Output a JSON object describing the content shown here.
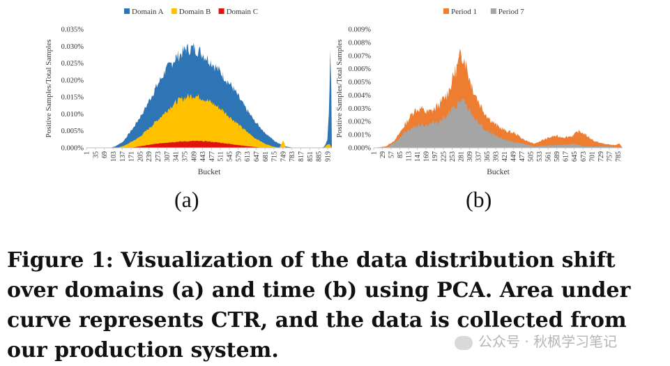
{
  "figure": {
    "label_a": "(a)",
    "label_b": "(b)",
    "caption": "Figure 1: Visualization of the data distribution shift over domains (a) and time (b) using PCA. Area under curve represents CTR, and the data is collected from our production system.",
    "watermark": "公众号 · 秋枫学习笔记"
  },
  "chart_data": [
    {
      "type": "area",
      "title": "",
      "xlabel": "Bucket",
      "ylabel": "Positive Samples/Total Samples",
      "ylim": [
        0,
        0.035
      ],
      "y_ticks": [
        "0.000%",
        "0.005%",
        "0.010%",
        "0.015%",
        "0.020%",
        "0.025%",
        "0.030%",
        "0.035%"
      ],
      "x_range": [
        1,
        935
      ],
      "x_ticks": [
        "1",
        "35",
        "69",
        "103",
        "137",
        "171",
        "205",
        "239",
        "273",
        "307",
        "341",
        "375",
        "409",
        "443",
        "477",
        "511",
        "545",
        "579",
        "613",
        "647",
        "681",
        "715",
        "749",
        "783",
        "817",
        "851",
        "885",
        "919"
      ],
      "legend": "top-center",
      "grid": false,
      "series": [
        {
          "name": "Domain A",
          "color": "#2E75B6",
          "points": [
            [
              1,
              0
            ],
            [
              90,
              0
            ],
            [
              110,
              0.0004
            ],
            [
              140,
              0.0018
            ],
            [
              180,
              0.006
            ],
            [
              220,
              0.011
            ],
            [
              260,
              0.017
            ],
            [
              300,
              0.0225
            ],
            [
              340,
              0.0265
            ],
            [
              380,
              0.029
            ],
            [
              409,
              0.0295
            ],
            [
              440,
              0.028
            ],
            [
              480,
              0.025
            ],
            [
              520,
              0.0215
            ],
            [
              560,
              0.0175
            ],
            [
              600,
              0.0125
            ],
            [
              640,
              0.008
            ],
            [
              680,
              0.0045
            ],
            [
              720,
              0.0018
            ],
            [
              760,
              0.0004
            ],
            [
              790,
              0
            ],
            [
              895,
              0
            ],
            [
              905,
              0.0003
            ],
            [
              912,
              0.0012
            ],
            [
              918,
              0.0025
            ],
            [
              923,
              0.009
            ],
            [
              926,
              0.016
            ],
            [
              929,
              0.03
            ],
            [
              933,
              0.018
            ],
            [
              935,
              0
            ]
          ]
        },
        {
          "name": "Domain B",
          "color": "#FFC000",
          "points": [
            [
              1,
              0
            ],
            [
              120,
              0
            ],
            [
              150,
              0.0008
            ],
            [
              200,
              0.003
            ],
            [
              250,
              0.0065
            ],
            [
              300,
              0.0105
            ],
            [
              340,
              0.0135
            ],
            [
              380,
              0.015
            ],
            [
              409,
              0.0155
            ],
            [
              440,
              0.0148
            ],
            [
              480,
              0.0132
            ],
            [
              520,
              0.011
            ],
            [
              560,
              0.0082
            ],
            [
              600,
              0.0055
            ],
            [
              640,
              0.003
            ],
            [
              680,
              0.0012
            ],
            [
              710,
              0.0004
            ],
            [
              735,
              0
            ],
            [
              750,
              0.0022
            ],
            [
              760,
              0
            ],
            [
              905,
              0
            ],
            [
              915,
              0.0008
            ],
            [
              925,
              0.0012
            ],
            [
              935,
              0
            ]
          ]
        },
        {
          "name": "Domain C",
          "color": "#E0120B",
          "points": [
            [
              1,
              0
            ],
            [
              170,
              0
            ],
            [
              200,
              0.0004
            ],
            [
              250,
              0.001
            ],
            [
              300,
              0.0015
            ],
            [
              350,
              0.0018
            ],
            [
              409,
              0.002
            ],
            [
              460,
              0.0019
            ],
            [
              510,
              0.0015
            ],
            [
              560,
              0.001
            ],
            [
              610,
              0.0005
            ],
            [
              660,
              0.0001
            ],
            [
              690,
              0
            ]
          ]
        }
      ]
    },
    {
      "type": "area",
      "title": "",
      "xlabel": "Bucket",
      "ylabel": "Positive Samples/Total Samples",
      "ylim": [
        0,
        0.009
      ],
      "y_ticks": [
        "0.000%",
        "0.001%",
        "0.002%",
        "0.003%",
        "0.004%",
        "0.005%",
        "0.006%",
        "0.007%",
        "0.008%",
        "0.009%"
      ],
      "x_range": [
        1,
        800
      ],
      "x_ticks": [
        "1",
        "29",
        "57",
        "85",
        "113",
        "141",
        "169",
        "197",
        "225",
        "253",
        "281",
        "309",
        "337",
        "365",
        "393",
        "421",
        "449",
        "477",
        "505",
        "533",
        "561",
        "589",
        "617",
        "645",
        "673",
        "701",
        "729",
        "757",
        "785"
      ],
      "legend": "top-center",
      "grid": false,
      "series": [
        {
          "name": "Period 1",
          "color": "#ED7D31",
          "points": [
            [
              1,
              0
            ],
            [
              40,
              0.0001
            ],
            [
              70,
              0.0006
            ],
            [
              100,
              0.0017
            ],
            [
              130,
              0.0028
            ],
            [
              150,
              0.003
            ],
            [
              170,
              0.0027
            ],
            [
              190,
              0.0028
            ],
            [
              215,
              0.0034
            ],
            [
              240,
              0.0042
            ],
            [
              260,
              0.0056
            ],
            [
              275,
              0.0066
            ],
            [
              283,
              0.0073
            ],
            [
              295,
              0.0065
            ],
            [
              315,
              0.0048
            ],
            [
              340,
              0.0034
            ],
            [
              365,
              0.0024
            ],
            [
              395,
              0.0017
            ],
            [
              425,
              0.0013
            ],
            [
              455,
              0.0011
            ],
            [
              485,
              0.0006
            ],
            [
              515,
              0.0003
            ],
            [
              545,
              0.0006
            ],
            [
              580,
              0.0009
            ],
            [
              610,
              0.0008
            ],
            [
              640,
              0.0009
            ],
            [
              660,
              0.0013
            ],
            [
              680,
              0.001
            ],
            [
              710,
              0.0005
            ],
            [
              740,
              0.0003
            ],
            [
              775,
              0.0002
            ],
            [
              790,
              0.0003
            ],
            [
              800,
              0
            ]
          ]
        },
        {
          "name": "Period 7",
          "color": "#A5A5A5",
          "points": [
            [
              1,
              0
            ],
            [
              40,
              0
            ],
            [
              70,
              0.0004
            ],
            [
              100,
              0.0012
            ],
            [
              140,
              0.0017
            ],
            [
              180,
              0.0018
            ],
            [
              215,
              0.0021
            ],
            [
              245,
              0.0027
            ],
            [
              270,
              0.0033
            ],
            [
              283,
              0.0036
            ],
            [
              300,
              0.0031
            ],
            [
              330,
              0.0021
            ],
            [
              360,
              0.0013
            ],
            [
              400,
              0.0008
            ],
            [
              440,
              0.0005
            ],
            [
              480,
              0.0003
            ],
            [
              520,
              0.0001
            ],
            [
              560,
              0.0002
            ],
            [
              600,
              0.0002
            ],
            [
              640,
              0.0003
            ],
            [
              680,
              0.0001
            ],
            [
              720,
              0.0001
            ],
            [
              760,
              0.0001
            ],
            [
              800,
              0
            ]
          ]
        }
      ]
    }
  ]
}
